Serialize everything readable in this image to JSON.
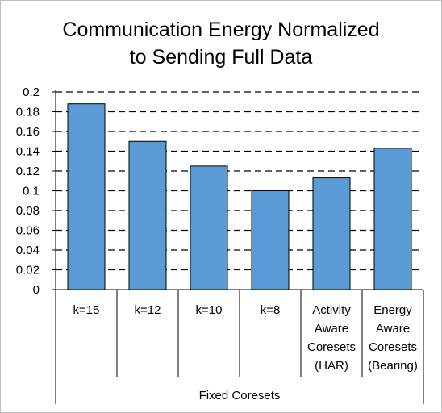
{
  "chart_data": {
    "type": "bar",
    "title_lines": [
      "Communication Energy Normalized",
      "to Sending Full Data"
    ],
    "categories": [
      [
        "k=15"
      ],
      [
        "k=12"
      ],
      [
        "k=10"
      ],
      [
        "k=8"
      ],
      [
        "Activity",
        "Aware",
        "Coresets",
        "(HAR)"
      ],
      [
        "Energy",
        "Aware",
        "Coresets",
        "(Bearing)"
      ]
    ],
    "values": [
      0.188,
      0.15,
      0.125,
      0.1,
      0.113,
      0.143
    ],
    "group_label": "Fixed Coresets",
    "group_span": [
      0,
      5
    ],
    "ylim": [
      0,
      0.2
    ],
    "yticks": [
      "0",
      "0.02",
      "0.04",
      "0.06",
      "0.08",
      "0.1",
      "0.12",
      "0.14",
      "0.16",
      "0.18",
      "0.2"
    ],
    "grid": "dashed-horizontal",
    "legend": "none",
    "colors": {
      "bar_fill": "#5b9bd5",
      "bar_stroke": "#000000",
      "grid": "#000000"
    }
  }
}
